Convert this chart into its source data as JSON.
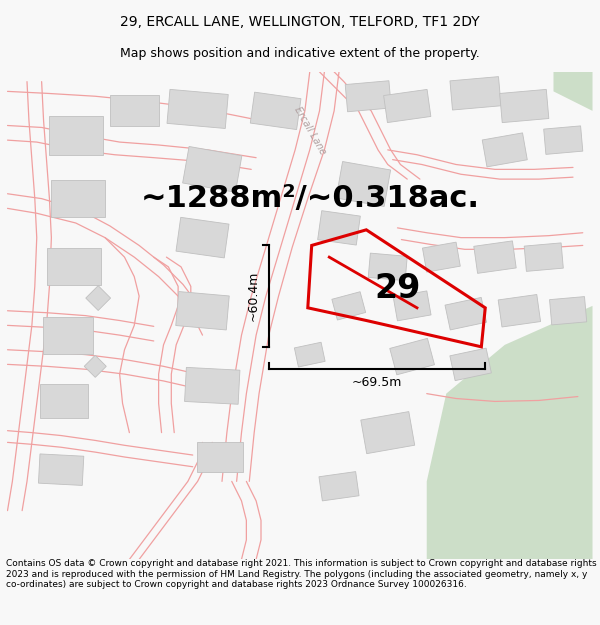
{
  "title_line1": "29, ERCALL LANE, WELLINGTON, TELFORD, TF1 2DY",
  "title_line2": "Map shows position and indicative extent of the property.",
  "area_text": "~1288m²/~0.318ac.",
  "label_number": "29",
  "label_60": "~60.4m",
  "label_69": "~69.5m",
  "copyright_text": "Contains OS data © Crown copyright and database right 2021. This information is subject to Crown copyright and database rights 2023 and is reproduced with the permission of HM Land Registry. The polygons (including the associated geometry, namely x, y co-ordinates) are subject to Crown copyright and database rights 2023 Ordnance Survey 100026316.",
  "road_label": "Ercall Lane",
  "bg_color": "#f8f8f8",
  "map_bg": "#ffffff",
  "property_color": "#dd0000",
  "building_fill": "#d8d8d8",
  "building_edge": "#c0c0c0",
  "road_color": "#f0a0a0",
  "road_color2": "#e88888",
  "green_area": "#ccdec8",
  "title_fontsize": 10,
  "subtitle_fontsize": 9,
  "area_fontsize": 22,
  "number_fontsize": 24,
  "measure_fontsize": 9,
  "copyright_fontsize": 6.5,
  "road_label_fontsize": 7,
  "road_label_color": "#b0a0a0"
}
